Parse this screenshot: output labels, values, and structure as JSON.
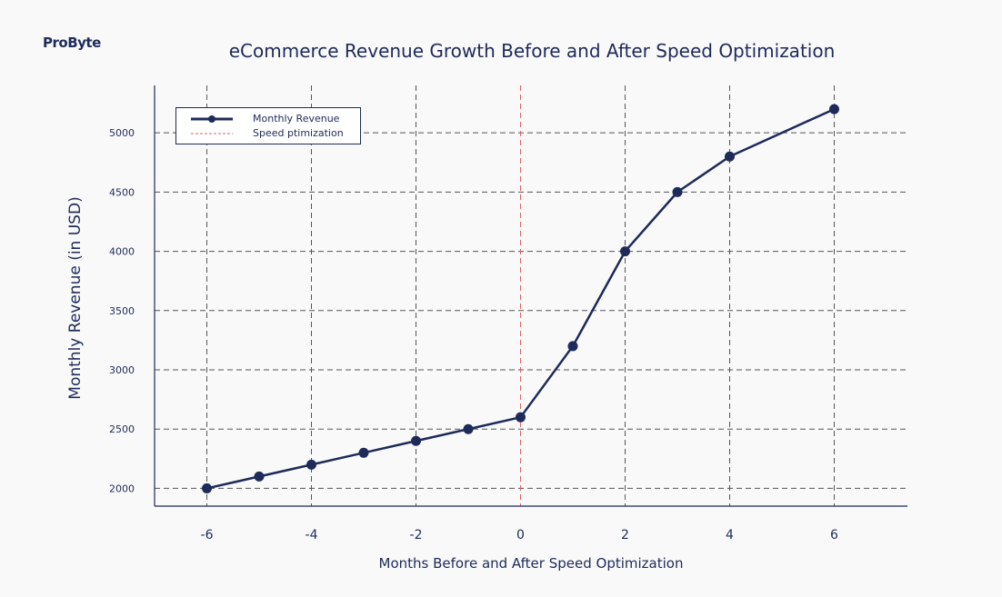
{
  "brand": {
    "logo_text": "ProByte"
  },
  "colors": {
    "series": "#1e2a5a",
    "marker_line": "#e06060",
    "grid": "#555555"
  },
  "chart_data": {
    "type": "line",
    "title": "eCommerce Revenue Growth Before and After Speed Optimization",
    "xlabel": "Months Before and After Speed Optimization",
    "ylabel": "Monthly Revenue (in USD)",
    "xlim": [
      -7,
      7.4
    ],
    "ylim": [
      1850,
      5400
    ],
    "x_ticks": [
      -6,
      -4,
      -2,
      0,
      2,
      4,
      6
    ],
    "x_tick_labels": [
      "-6",
      "-4",
      "-2",
      "0",
      "2",
      "4",
      "6"
    ],
    "y_ticks": [
      2000,
      2500,
      3000,
      3500,
      4000,
      4500,
      5000
    ],
    "y_tick_labels": [
      "2000",
      "2500",
      "3000",
      "3500",
      "4000",
      "4500",
      "5000"
    ],
    "grid": true,
    "legend_position": "top-left",
    "series": [
      {
        "name": "Monthly Revenue",
        "x": [
          -6,
          -5,
          -4,
          -3,
          -2,
          -1,
          0,
          1,
          2,
          3,
          4,
          6
        ],
        "y": [
          2000,
          2100,
          2200,
          2300,
          2400,
          2500,
          2600,
          3200,
          4000,
          4500,
          4800,
          5200
        ]
      }
    ],
    "vline": {
      "name": "Speed ptimization",
      "x": 0
    }
  }
}
